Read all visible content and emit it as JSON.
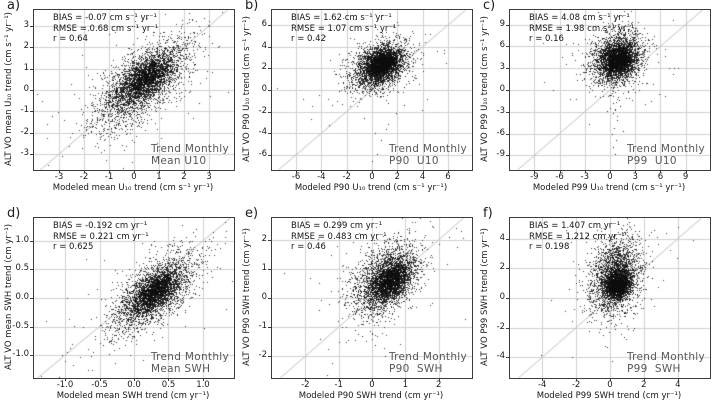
{
  "colors": {
    "background": "#ffffff",
    "point": "#101010",
    "grid": "#cfcfcf",
    "diagonal": "#c0c0c0",
    "box": "#3c3c3c",
    "stats_text": "#141414",
    "caption_text": "#585858"
  },
  "chart_data": {
    "type": "scatter",
    "layout": {
      "rows": 2,
      "cols": 3,
      "grid": true,
      "identity_line": true
    },
    "panels": [
      {
        "letter": "a)",
        "bias": -0.07,
        "rmse": 0.68,
        "r": 0.64,
        "units": "cm s⁻¹ yr⁻¹",
        "stats": [
          "BIAS = -0.07 cm s⁻¹ yr⁻¹",
          "RMSE = 0.68 cm s⁻¹ yr⁻¹",
          "r = 0.64"
        ],
        "corner": [
          "Trend Monthly",
          "Mean U10"
        ],
        "xlabel": "Modeled mean U₁₀ trend (cm s⁻¹ yr⁻¹)",
        "ylabel": "ALT VO mean U₁₀ trend (cm s⁻¹ yr⁻¹)",
        "xlim": [
          -4.0,
          4.0
        ],
        "ylim": [
          -3.75,
          3.75
        ],
        "x_ticks": [
          -3,
          -2,
          -1,
          0,
          1,
          2,
          3
        ],
        "x_tick_labels": [
          "-3",
          "-2",
          "-1",
          "0",
          "1",
          "2",
          "3"
        ],
        "y_ticks": [
          -3,
          -2,
          -1,
          0,
          1,
          2,
          3
        ],
        "y_tick_labels": [
          "-3",
          "-2",
          "-1",
          "0",
          "1",
          "2",
          "3"
        ],
        "clouds": [
          {
            "n": 2800,
            "cx": 0.3,
            "cy": 0.3,
            "sdx": 0.95,
            "sdy": 1.0,
            "corr": 0.66,
            "tail": 0.05,
            "tail_scale": 2.2
          },
          {
            "n": 1600,
            "cx": 0.5,
            "cy": 0.6,
            "sdx": 0.5,
            "sdy": 0.55,
            "corr": 0.6
          }
        ],
        "outliers": [
          [
            -2.9,
            -3.1
          ],
          [
            2.6,
            -0.6
          ],
          [
            3.1,
            2.2
          ],
          [
            -3.3,
            -1.2
          ],
          [
            2.9,
            0.9
          ]
        ]
      },
      {
        "letter": "b)",
        "bias": 1.62,
        "rmse": 1.07,
        "r": 0.42,
        "units": "cm s⁻¹ yr⁻¹",
        "stats": [
          "BIAS = 1.62 cm s⁻¹ yr⁻¹",
          "RMSE = 1.07 cm s⁻¹ yr⁻¹",
          "r = 0.42"
        ],
        "corner": [
          "Trend Monthly",
          "P90  U10"
        ],
        "xlabel": "Modeled P90 U₁₀ trend (cm s⁻¹ yr⁻¹)",
        "ylabel": "ALT VO P90 U₁₀ trend (cm s⁻¹ yr⁻¹)",
        "xlim": [
          -7.9,
          7.9
        ],
        "ylim": [
          -7.4,
          7.4
        ],
        "x_ticks": [
          -6,
          -4,
          -2,
          0,
          2,
          4,
          6
        ],
        "x_tick_labels": [
          "-6",
          "-4",
          "-2",
          "0",
          "2",
          "4",
          "6"
        ],
        "y_ticks": [
          -6,
          -4,
          -2,
          0,
          2,
          4,
          6
        ],
        "y_tick_labels": [
          "-6",
          "-4",
          "-2",
          "0",
          "2",
          "4",
          "6"
        ],
        "clouds": [
          {
            "n": 2600,
            "cx": 0.5,
            "cy": 2.2,
            "sdx": 1.1,
            "sdy": 1.1,
            "corr": 0.35,
            "tail": 0.04,
            "tail_scale": 2.0
          },
          {
            "n": 1800,
            "cx": 0.8,
            "cy": 2.4,
            "sdx": 0.6,
            "sdy": 0.65,
            "corr": 0.35
          }
        ],
        "outliers": [
          [
            0.2,
            -4.0
          ],
          [
            0.4,
            -5.9
          ],
          [
            1.1,
            -3.6
          ],
          [
            -0.6,
            -2.6
          ],
          [
            1.9,
            -2.1
          ],
          [
            0.0,
            -6.6
          ],
          [
            0.7,
            -4.6
          ],
          [
            2.5,
            -1.4
          ],
          [
            3.2,
            3.4
          ],
          [
            3.6,
            3.8
          ],
          [
            -2.2,
            0.3
          ]
        ]
      },
      {
        "letter": "c)",
        "bias": 4.08,
        "rmse": 1.98,
        "r": 0.16,
        "units": "cm s⁻¹ yr⁻¹",
        "stats": [
          "BIAS = 4.08 cm s⁻¹ yr⁻¹",
          "RMSE = 1.98 cm s⁻¹ yr⁻¹",
          "r = 0.16"
        ],
        "corner": [
          "Trend Monthly",
          "P99  U10"
        ],
        "xlabel": "Modeled P99 U₁₀ trend (cm s⁻¹ yr⁻¹)",
        "ylabel": "ALT VO P99 U₁₀ trend (cm s⁻¹ yr⁻¹)",
        "xlim": [
          -11.9,
          11.9
        ],
        "ylim": [
          -11.0,
          11.0
        ],
        "x_ticks": [
          -9,
          -6,
          -3,
          0,
          3,
          6,
          9
        ],
        "x_tick_labels": [
          "-9",
          "-6",
          "-3",
          "0",
          "3",
          "6",
          "9"
        ],
        "y_ticks": [
          -9,
          -6,
          -3,
          0,
          3,
          6,
          9
        ],
        "y_tick_labels": [
          "-9",
          "-6",
          "-3",
          "0",
          "3",
          "6",
          "9"
        ],
        "clouds": [
          {
            "n": 2600,
            "cx": 0.7,
            "cy": 4.4,
            "sdx": 1.5,
            "sdy": 1.8,
            "corr": 0.18,
            "tail": 0.04,
            "tail_scale": 1.9
          },
          {
            "n": 1900,
            "cx": 1.0,
            "cy": 4.1,
            "sdx": 0.8,
            "sdy": 0.9,
            "corr": 0.12
          }
        ],
        "outliers": [
          [
            0.4,
            -1.8
          ],
          [
            0.6,
            -2.6
          ],
          [
            0.3,
            -3.2
          ],
          [
            0.8,
            -4.1
          ],
          [
            0.5,
            -5.2
          ],
          [
            0.2,
            -6.0
          ],
          [
            0.7,
            -6.9
          ],
          [
            0.4,
            -7.8
          ],
          [
            0.6,
            -8.8
          ],
          [
            1.2,
            -2.2
          ],
          [
            -0.3,
            -2.9
          ],
          [
            1.5,
            -5.6
          ],
          [
            3.8,
            0.9
          ],
          [
            -3.6,
            2.2
          ],
          [
            0.9,
            -0.9
          ],
          [
            1.1,
            -1.4
          ]
        ]
      },
      {
        "letter": "d)",
        "bias": -0.192,
        "rmse": 0.221,
        "r": 0.625,
        "units": "cm yr⁻¹",
        "stats": [
          "BIAS = -0.192 cm yr⁻¹",
          "RMSE = 0.221 cm yr⁻¹",
          "r = 0.625"
        ],
        "corner": [
          "Trend Monthly",
          "Mean SWH"
        ],
        "xlabel": "Modeled mean SWH trend (cm yr⁻¹)",
        "ylabel": "ALT VO mean SWH trend (cm yr⁻¹)",
        "xlim": [
          -1.45,
          1.45
        ],
        "ylim": [
          -1.4,
          1.4
        ],
        "x_ticks": [
          -1.0,
          -0.5,
          0.0,
          0.5,
          1.0
        ],
        "x_tick_labels": [
          "-1.0",
          "-0.5",
          "0.0",
          "0.5",
          "1.0"
        ],
        "y_ticks": [
          -1.0,
          -0.5,
          0.0,
          0.5,
          1.0
        ],
        "y_tick_labels": [
          "-1.0",
          "-0.5",
          "0.0",
          "0.5",
          "1.0"
        ],
        "clouds": [
          {
            "n": 2600,
            "cx": 0.27,
            "cy": 0.08,
            "sdx": 0.3,
            "sdy": 0.34,
            "corr": 0.64,
            "tail": 0.05,
            "tail_scale": 2.0
          },
          {
            "n": 1500,
            "cx": 0.3,
            "cy": 0.12,
            "sdx": 0.16,
            "sdy": 0.18,
            "corr": 0.6
          }
        ],
        "outliers": [
          [
            1.15,
            1.15
          ],
          [
            -1.05,
            -1.0
          ],
          [
            0.9,
            1.2
          ],
          [
            1.2,
            0.55
          ]
        ]
      },
      {
        "letter": "e)",
        "bias": 0.299,
        "rmse": 0.483,
        "r": 0.46,
        "units": "cm yr⁻¹",
        "stats": [
          "BIAS = 0.299 cm yr⁻¹",
          "RMSE = 0.483 cm yr⁻¹",
          "r = 0.46"
        ],
        "corner": [
          "Trend Monthly",
          "P90  SWH"
        ],
        "xlabel": "Modeled P90 SWH trend (cm yr⁻¹)",
        "ylabel": "ALT VO P90 SWH trend (cm yr⁻¹)",
        "xlim": [
          -3.0,
          3.0
        ],
        "ylim": [
          -2.75,
          2.75
        ],
        "x_ticks": [
          -2,
          -1,
          0,
          1,
          2
        ],
        "x_tick_labels": [
          "-2",
          "-1",
          "0",
          "1",
          "2"
        ],
        "y_ticks": [
          -2,
          -1,
          0,
          1,
          2
        ],
        "y_tick_labels": [
          "-2",
          "-1",
          "0",
          "1",
          "2"
        ],
        "clouds": [
          {
            "n": 2600,
            "cx": 0.4,
            "cy": 0.65,
            "sdx": 0.5,
            "sdy": 0.62,
            "corr": 0.45,
            "tail": 0.05,
            "tail_scale": 2.0
          },
          {
            "n": 1600,
            "cx": 0.55,
            "cy": 0.55,
            "sdx": 0.27,
            "sdy": 0.3,
            "corr": 0.45
          }
        ],
        "outliers": [
          [
            -0.3,
            -1.3
          ],
          [
            0.1,
            -1.6
          ],
          [
            -0.9,
            -1.0
          ],
          [
            0.4,
            -2.0
          ],
          [
            2.3,
            2.1
          ],
          [
            -1.6,
            -0.4
          ]
        ]
      },
      {
        "letter": "f)",
        "bias": 1.407,
        "rmse": 1.212,
        "r": 0.198,
        "units": "cm yr⁻¹",
        "stats": [
          "BIAS = 1.407 cm yr⁻¹",
          "RMSE = 1.212 cm yr⁻¹",
          "r = 0.198"
        ],
        "corner": [
          "Trend Monthly",
          "P99  SWH"
        ],
        "xlabel": "Modeled P99 SWH trend (cm yr⁻¹)",
        "ylabel": "ALT VO P99 SWH trend (cm yr⁻¹)",
        "xlim": [
          -5.9,
          5.9
        ],
        "ylim": [
          -5.4,
          5.4
        ],
        "x_ticks": [
          -4,
          -2,
          0,
          2,
          4
        ],
        "x_tick_labels": [
          "-4",
          "-2",
          "0",
          "2",
          "4"
        ],
        "y_ticks": [
          -4,
          -2,
          0,
          2,
          4
        ],
        "y_tick_labels": [
          "-4",
          "-2",
          "0",
          "2",
          "4"
        ],
        "clouds": [
          {
            "n": 2400,
            "cx": 0.3,
            "cy": 1.5,
            "sdx": 0.75,
            "sdy": 1.25,
            "corr": 0.2,
            "tail": 0.04,
            "tail_scale": 1.9
          },
          {
            "n": 1900,
            "cx": 0.45,
            "cy": 0.9,
            "sdx": 0.35,
            "sdy": 0.45,
            "corr": 0.15
          }
        ],
        "outliers": [
          [
            0.3,
            -2.1
          ],
          [
            1.4,
            -2.0
          ],
          [
            -1.1,
            -1.6
          ],
          [
            2.2,
            1.4
          ],
          [
            0.8,
            -2.6
          ],
          [
            -0.2,
            -3.3
          ],
          [
            2.6,
            4.6
          ],
          [
            -2.4,
            0.6
          ]
        ]
      }
    ]
  }
}
